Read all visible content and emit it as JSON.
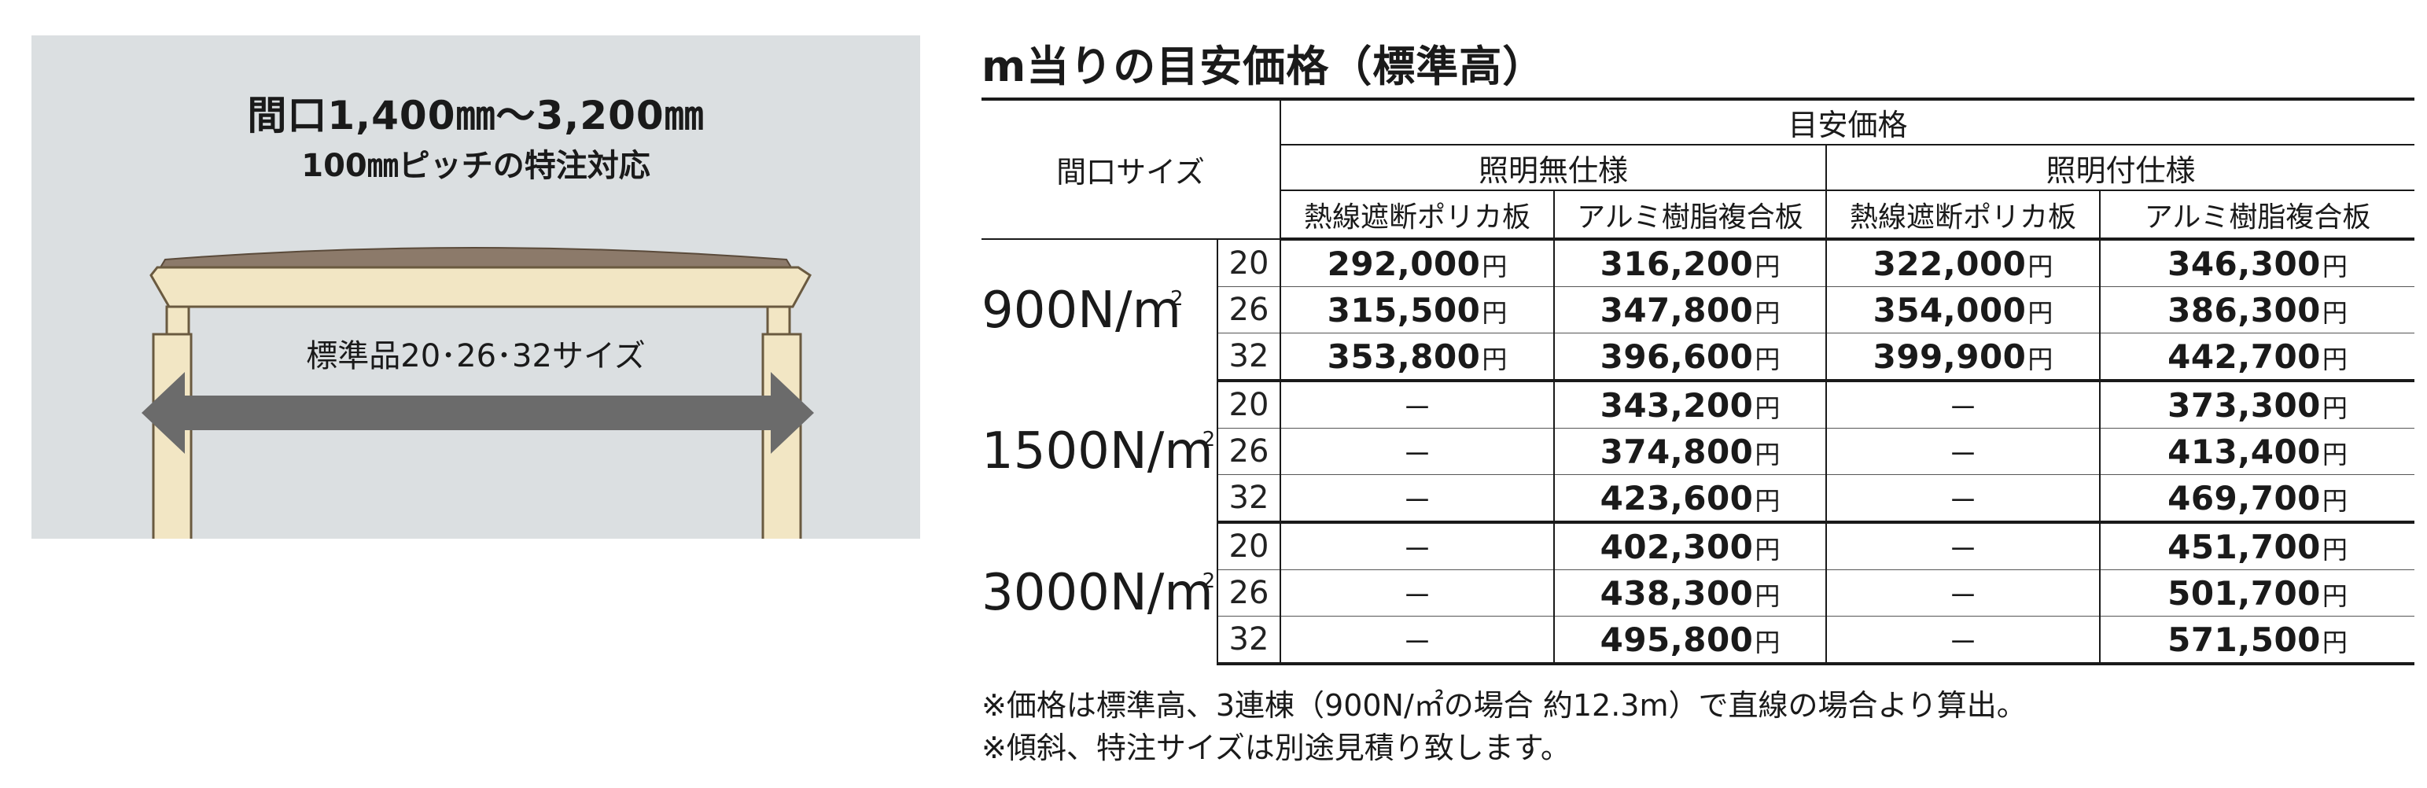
{
  "diagram": {
    "range_text": "間口1,400㎜〜3,200㎜",
    "pitch_text": "100㎜ピッチの特注対応",
    "standard_text": "標準品20･26･32サイズ"
  },
  "heading": "m当りの目安価格（標準高）",
  "table": {
    "size_header": "間口サイズ",
    "price_header": "目安価格",
    "groups": [
      "照明無仕様",
      "照明付仕様"
    ],
    "columns": [
      "熱線遮断ポリカ板",
      "アルミ樹脂複合板",
      "熱線遮断ポリカ板",
      "アルミ樹脂複合板"
    ],
    "yen": "円",
    "dash": "－",
    "rows": [
      {
        "load": "900N/m",
        "size": "20",
        "prices": [
          "292,000",
          "316,200",
          "322,000",
          "346,300"
        ]
      },
      {
        "load": "",
        "size": "26",
        "prices": [
          "315,500",
          "347,800",
          "354,000",
          "386,300"
        ]
      },
      {
        "load": "",
        "size": "32",
        "prices": [
          "353,800",
          "396,600",
          "399,900",
          "442,700"
        ]
      },
      {
        "load": "1500N/m",
        "size": "20",
        "prices": [
          null,
          "343,200",
          null,
          "373,300"
        ]
      },
      {
        "load": "",
        "size": "26",
        "prices": [
          null,
          "374,800",
          null,
          "413,400"
        ]
      },
      {
        "load": "",
        "size": "32",
        "prices": [
          null,
          "423,600",
          null,
          "469,700"
        ]
      },
      {
        "load": "3000N/m",
        "size": "20",
        "prices": [
          null,
          "402,300",
          null,
          "451,700"
        ]
      },
      {
        "load": "",
        "size": "26",
        "prices": [
          null,
          "438,300",
          null,
          "501,700"
        ]
      },
      {
        "load": "",
        "size": "32",
        "prices": [
          null,
          "495,800",
          null,
          "571,500"
        ]
      }
    ],
    "load_sup": "2"
  },
  "notes": [
    "※価格は標準高、3連棟（900N/㎡の場合 約12.3m）で直線の場合より算出。",
    "※傾斜、特注サイズは別途見積り致します。"
  ],
  "colors": {
    "diagram_bg": "#dbdfe1",
    "post": "#f2e6c4",
    "arrow": "#6b6b6b",
    "roof": "#8c7a6a"
  }
}
